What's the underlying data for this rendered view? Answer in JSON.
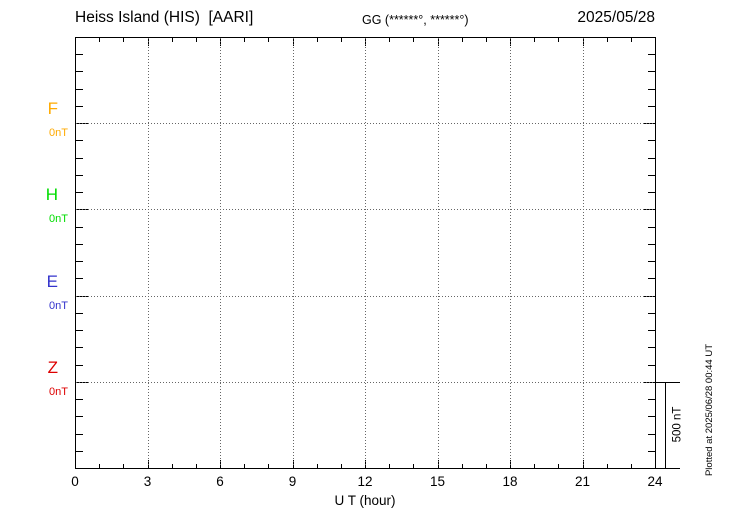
{
  "header": {
    "station_title": "Heiss Island (HIS)  [AARI]",
    "gg_coordinates": "GG (******°, ******°)",
    "date": "2025/05/28"
  },
  "footer": {
    "plotted_at": "Plotted at 2025/06/28 00:44 UT"
  },
  "chart_data": {
    "type": "line",
    "title": "Heiss Island (HIS)  [AARI]",
    "subtitle": "GG (******°, ******°)",
    "date": "2025/05/28",
    "xlabel": "U T (hour)",
    "x_axis": {
      "min": 0,
      "max": 24,
      "minor_step": 1,
      "major_step": 3,
      "tick_labels": [
        "0",
        "3",
        "6",
        "9",
        "12",
        "15",
        "18",
        "21",
        "24"
      ]
    },
    "y_axis": {
      "minor_ticks_total": 25,
      "nT_per_minor_tick": 100,
      "component_spacing_nT": 500
    },
    "grid": {
      "style": "dotted",
      "vertical_every_hours": 3,
      "horizontal_at_baselines": true,
      "color": "#666666"
    },
    "components": [
      {
        "label": "F",
        "value_label": "0nT",
        "color": "#FFAA00",
        "baseline_index": 5,
        "values": []
      },
      {
        "label": "H",
        "value_label": "0nT",
        "color": "#00DD00",
        "baseline_index": 10,
        "values": []
      },
      {
        "label": "E",
        "value_label": "0nT",
        "color": "#3333CC",
        "baseline_index": 15,
        "values": []
      },
      {
        "label": "Z",
        "value_label": "0nT",
        "color": "#DD0000",
        "baseline_index": 20,
        "values": []
      }
    ],
    "scale_bar": {
      "label": "500 nT",
      "value_nT": 500
    }
  }
}
